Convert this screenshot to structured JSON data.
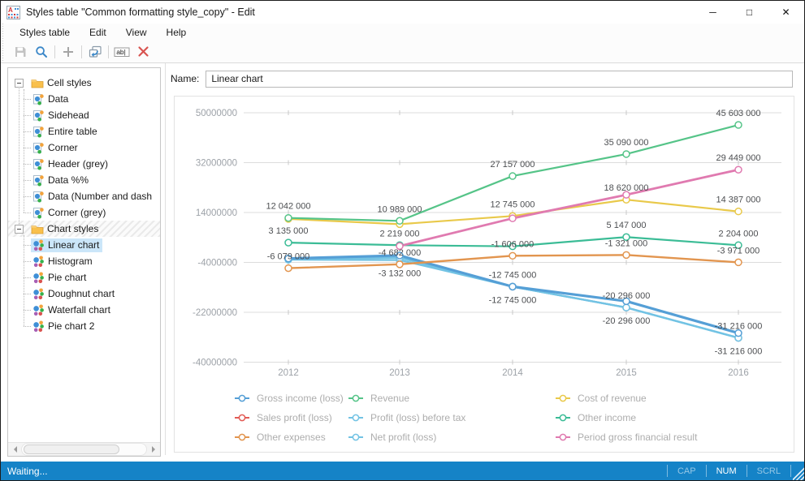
{
  "window": {
    "title": "Styles table \"Common formatting style_copy\" - Edit",
    "controls": {
      "minimize": "─",
      "maximize": "□",
      "close": "✕"
    }
  },
  "menu": {
    "items": [
      "Styles table",
      "Edit",
      "View",
      "Help"
    ]
  },
  "toolbar": {
    "buttons": [
      "save",
      "find",
      "add",
      "duplicate",
      "rename",
      "delete"
    ],
    "rename_glyph": "ab|"
  },
  "tree": {
    "groups": [
      {
        "label": "Cell styles",
        "hatched": false,
        "items": [
          {
            "label": "Data",
            "selected": false
          },
          {
            "label": "Sidehead",
            "selected": false
          },
          {
            "label": "Entire table",
            "selected": false
          },
          {
            "label": "Corner",
            "selected": false
          },
          {
            "label": "Header (grey)",
            "selected": false
          },
          {
            "label": "Data %%",
            "selected": false
          },
          {
            "label": "Data (Number and dash",
            "selected": false
          },
          {
            "label": "Corner (grey)",
            "selected": false
          }
        ]
      },
      {
        "label": "Chart styles",
        "hatched": true,
        "items": [
          {
            "label": "Linear chart",
            "selected": true
          },
          {
            "label": "Histogram",
            "selected": false
          },
          {
            "label": "Pie chart",
            "selected": false
          },
          {
            "label": "Doughnut chart",
            "selected": false
          },
          {
            "label": "Waterfall chart",
            "selected": false
          },
          {
            "label": "Pie chart 2",
            "selected": false
          }
        ]
      }
    ]
  },
  "name_field": {
    "label": "Name:",
    "value": "Linear chart"
  },
  "chart_data": {
    "type": "line",
    "title": "",
    "categories": [
      "2012",
      "2013",
      "2014",
      "2015",
      "2016"
    ],
    "xlabel": "",
    "ylabel": "",
    "ylim": [
      -40000000,
      50000000
    ],
    "grid": true,
    "legend_position": "bottom",
    "y_ticks": [
      {
        "label": "50000000",
        "value": 50000000
      },
      {
        "label": "32000000",
        "value": 32000000
      },
      {
        "label": "14000000",
        "value": 14000000
      },
      {
        "label": "-4000000",
        "value": -4000000
      },
      {
        "label": "-22000000",
        "value": -22000000
      },
      {
        "label": "-40000000",
        "value": -40000000
      }
    ],
    "series": [
      {
        "name": "Sales profit (loss)",
        "color": "#e25b55",
        "width": 2,
        "values": [
          -2800000,
          -2300000,
          -12745000,
          -20296000,
          -31216000
        ]
      },
      {
        "name": "Net profit (loss)",
        "color": "#72c3e4",
        "width": 2.4,
        "values": [
          -3000000,
          -3132000,
          -12745000,
          -20296000,
          -31216000
        ]
      },
      {
        "name": "Profit (loss) before tax",
        "color": "#72c3e4",
        "width": 2.4,
        "values": [
          -2800000,
          -2300000,
          -12745000,
          -20296000,
          -31216000
        ]
      },
      {
        "name": "Gross income (loss)",
        "color": "#559fd6",
        "width": 3.2,
        "values": [
          -2600000,
          -1500000,
          -12745000,
          -18000000,
          -29500000
        ]
      },
      {
        "name": "Other expenses",
        "color": "#e2954f",
        "width": 2.4,
        "values": [
          -6079000,
          -4682000,
          -1606000,
          -1321000,
          -3971000
        ]
      },
      {
        "name": "Other income",
        "color": "#3bbc96",
        "width": 2.2,
        "values": [
          3135000,
          2219000,
          1800000,
          5147000,
          2204000
        ]
      },
      {
        "name": "Cost of revenue",
        "color": "#e9c94a",
        "width": 2.2,
        "values": [
          11700000,
          9800000,
          12745000,
          18620000,
          14387000
        ]
      },
      {
        "name": "Revenue",
        "color": "#55c488",
        "width": 2.2,
        "values": [
          12042000,
          10989000,
          27157000,
          35090000,
          45603000
        ]
      },
      {
        "name": "Period gross financial result",
        "color": "#e07ab0",
        "width": 2.8,
        "values": [
          null,
          1900000,
          11900000,
          20400000,
          29449000
        ]
      }
    ],
    "point_labels": [
      {
        "series": "Revenue",
        "index": 0,
        "text": "12 042 000",
        "pos": "above"
      },
      {
        "series": "Revenue",
        "index": 1,
        "text": "10 989 000",
        "pos": "above"
      },
      {
        "series": "Revenue",
        "index": 2,
        "text": "27 157 000",
        "pos": "above"
      },
      {
        "series": "Revenue",
        "index": 3,
        "text": "35 090 000",
        "pos": "above"
      },
      {
        "series": "Revenue",
        "index": 4,
        "text": "45 603 000",
        "pos": "above"
      },
      {
        "series": "Other income",
        "index": 0,
        "text": "3 135 000",
        "pos": "above"
      },
      {
        "series": "Other income",
        "index": 1,
        "text": "2 219 000",
        "pos": "above"
      },
      {
        "series": "Other income",
        "index": 3,
        "text": "5 147 000",
        "pos": "above"
      },
      {
        "series": "Other income",
        "index": 4,
        "text": "2 204 000",
        "pos": "above"
      },
      {
        "series": "Other expenses",
        "index": 0,
        "text": "-6 079 000",
        "pos": "above"
      },
      {
        "series": "Other expenses",
        "index": 1,
        "text": "-4 682 000",
        "pos": "above"
      },
      {
        "series": "Other expenses",
        "index": 2,
        "text": "-1 606 000",
        "pos": "above"
      },
      {
        "series": "Other expenses",
        "index": 3,
        "text": "-1 321 000",
        "pos": "above"
      },
      {
        "series": "Other expenses",
        "index": 4,
        "text": "-3 971 000",
        "pos": "above"
      },
      {
        "series": "Cost of revenue",
        "index": 2,
        "text": "12 745 000",
        "pos": "above"
      },
      {
        "series": "Cost of revenue",
        "index": 3,
        "text": "18 620 000",
        "pos": "above"
      },
      {
        "series": "Cost of revenue",
        "index": 4,
        "text": "14 387 000",
        "pos": "above"
      },
      {
        "series": "Period gross financial result",
        "index": 4,
        "text": "29 449 000",
        "pos": "above"
      },
      {
        "series": "Profit (loss) before tax",
        "index": 2,
        "text": "-12 745 000",
        "pos": "above"
      },
      {
        "series": "Profit (loss) before tax",
        "index": 3,
        "text": "-20 296 000",
        "pos": "above"
      },
      {
        "series": "Profit (loss) before tax",
        "index": 4,
        "text": "-31 216 000",
        "pos": "above"
      },
      {
        "series": "Net profit (loss)",
        "index": 1,
        "text": "-3 132 000",
        "pos": "below"
      },
      {
        "series": "Net profit (loss)",
        "index": 2,
        "text": "-12 745 000",
        "pos": "below"
      },
      {
        "series": "Net profit (loss)",
        "index": 3,
        "text": "-20 296 000",
        "pos": "below"
      },
      {
        "series": "Net profit (loss)",
        "index": 4,
        "text": "-31 216 000",
        "pos": "below"
      }
    ],
    "legend_grid": [
      [
        "Gross income (loss)",
        "Revenue",
        "Cost of revenue"
      ],
      [
        "Sales profit (loss)",
        "Profit (loss) before tax",
        "Other income"
      ],
      [
        "Other expenses",
        "Net profit (loss)",
        "Period gross financial result"
      ]
    ]
  },
  "status_bar": {
    "text": "Waiting...",
    "indicators": [
      {
        "label": "CAP",
        "active": false
      },
      {
        "label": "NUM",
        "active": true
      },
      {
        "label": "SCRL",
        "active": false
      }
    ]
  }
}
